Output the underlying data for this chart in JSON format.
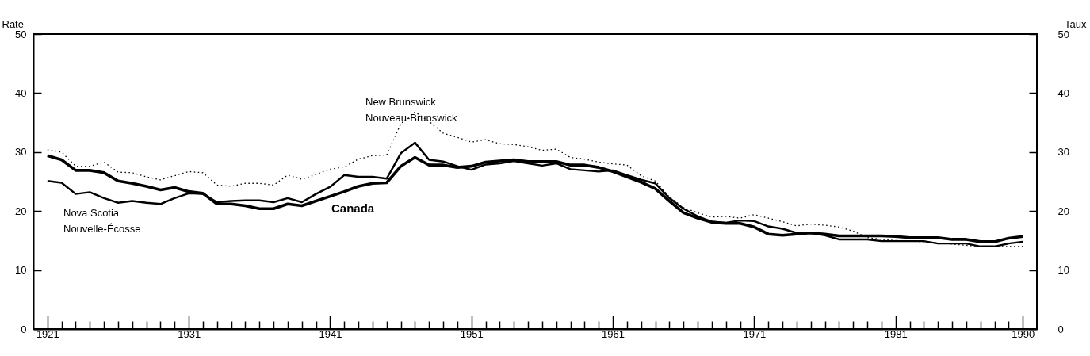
{
  "chart_data": {
    "type": "line",
    "ylabel": "Rate",
    "y2label": "Taux",
    "x": [
      1921,
      1922,
      1923,
      1924,
      1925,
      1926,
      1927,
      1928,
      1929,
      1930,
      1931,
      1932,
      1933,
      1934,
      1935,
      1936,
      1937,
      1938,
      1939,
      1940,
      1941,
      1942,
      1943,
      1944,
      1945,
      1946,
      1947,
      1948,
      1949,
      1950,
      1951,
      1952,
      1953,
      1954,
      1955,
      1956,
      1957,
      1958,
      1959,
      1960,
      1961,
      1962,
      1963,
      1964,
      1965,
      1966,
      1967,
      1968,
      1969,
      1970,
      1971,
      1972,
      1973,
      1974,
      1975,
      1976,
      1977,
      1978,
      1979,
      1980,
      1981,
      1982,
      1983,
      1984,
      1985,
      1986,
      1987,
      1988,
      1989,
      1990
    ],
    "series": [
      {
        "name": "Canada",
        "color": "#000000",
        "line_style": "solid",
        "values": [
          29.4,
          28.7,
          26.9,
          26.9,
          26.5,
          25.1,
          24.7,
          24.2,
          23.6,
          24.0,
          23.3,
          23.0,
          21.2,
          21.2,
          20.9,
          20.4,
          20.4,
          21.2,
          20.9,
          21.7,
          22.5,
          23.3,
          24.2,
          24.7,
          24.8,
          27.6,
          29.1,
          27.8,
          27.8,
          27.4,
          27.6,
          28.3,
          28.5,
          28.7,
          28.4,
          28.4,
          28.4,
          27.8,
          27.8,
          27.4,
          26.7,
          25.8,
          24.9,
          23.8,
          21.7,
          19.7,
          18.8,
          18.1,
          17.9,
          17.9,
          17.3,
          16.1,
          15.9,
          16.1,
          16.3,
          16.1,
          15.8,
          15.8,
          15.8,
          15.8,
          15.7,
          15.5,
          15.5,
          15.5,
          15.2,
          15.2,
          14.8,
          14.8,
          15.4,
          15.7
        ]
      },
      {
        "name": "Nova Scotia\nNouvelle-Écosse",
        "color": "#000000",
        "line_style": "solid",
        "values": [
          25.1,
          24.8,
          22.9,
          23.2,
          22.2,
          21.4,
          21.7,
          21.4,
          21.2,
          22.2,
          23.0,
          22.9,
          21.5,
          21.7,
          21.8,
          21.8,
          21.5,
          22.2,
          21.5,
          22.9,
          24.1,
          26.1,
          25.8,
          25.8,
          25.5,
          29.8,
          31.6,
          28.7,
          28.4,
          27.6,
          27.0,
          27.9,
          28.1,
          28.5,
          28.1,
          27.7,
          28.1,
          27.1,
          26.9,
          26.7,
          26.9,
          26.1,
          25.3,
          24.7,
          22.2,
          20.4,
          19.1,
          18.2,
          18.0,
          18.4,
          18.3,
          17.4,
          17.0,
          16.3,
          16.3,
          15.9,
          15.2,
          15.2,
          15.2,
          14.9,
          14.9,
          14.9,
          14.9,
          14.5,
          14.5,
          14.5,
          14.0,
          14.0,
          14.5,
          14.8
        ]
      },
      {
        "name": "New Brunswick\nNouveau-Brunswick",
        "color": "#000000",
        "line_style": "dotted",
        "values": [
          30.4,
          30.0,
          27.6,
          27.6,
          28.3,
          26.6,
          26.5,
          25.8,
          25.3,
          26.0,
          26.7,
          26.5,
          24.4,
          24.2,
          24.7,
          24.7,
          24.4,
          26.1,
          25.4,
          26.2,
          27.1,
          27.5,
          28.8,
          29.4,
          29.5,
          34.8,
          36.8,
          35.2,
          33.2,
          32.5,
          31.7,
          32.1,
          31.4,
          31.3,
          30.9,
          30.3,
          30.5,
          29.1,
          28.8,
          28.3,
          28.0,
          27.8,
          26.0,
          25.1,
          22.4,
          20.6,
          19.7,
          19.0,
          19.1,
          18.8,
          19.4,
          18.8,
          18.2,
          17.5,
          17.8,
          17.6,
          17.3,
          16.6,
          15.5,
          15.2,
          15.0,
          14.9,
          14.8,
          14.6,
          14.4,
          14.2,
          14.0,
          14.0,
          14.0,
          14.0
        ]
      }
    ],
    "xlim": [
      1920,
      1991
    ],
    "xticks": [
      1921,
      {
        "value": 1922,
        "label": null
      },
      {
        "value": 1923,
        "label": null
      },
      {
        "value": 1924,
        "label": null
      },
      {
        "value": 1925,
        "label": null
      },
      {
        "value": 1926,
        "label": null
      },
      {
        "value": 1927,
        "label": null
      },
      {
        "value": 1928,
        "label": null
      },
      {
        "value": 1929,
        "label": null
      },
      {
        "value": 1930,
        "label": null
      },
      1931,
      {
        "value": 1932,
        "label": null
      },
      {
        "value": 1933,
        "label": null
      },
      {
        "value": 1934,
        "label": null
      },
      {
        "value": 1935,
        "label": null
      },
      {
        "value": 1936,
        "label": null
      },
      {
        "value": 1937,
        "label": null
      },
      {
        "value": 1938,
        "label": null
      },
      {
        "value": 1939,
        "label": null
      },
      {
        "value": 1940,
        "label": null
      },
      1941,
      {
        "value": 1942,
        "label": null
      },
      {
        "value": 1943,
        "label": null
      },
      {
        "value": 1944,
        "label": null
      },
      {
        "value": 1945,
        "label": null
      },
      {
        "value": 1946,
        "label": null
      },
      {
        "value": 1947,
        "label": null
      },
      {
        "value": 1948,
        "label": null
      },
      {
        "value": 1949,
        "label": null
      },
      {
        "value": 1950,
        "label": null
      },
      1951,
      {
        "value": 1952,
        "label": null
      },
      {
        "value": 1953,
        "label": null
      },
      {
        "value": 1954,
        "label": null
      },
      {
        "value": 1955,
        "label": null
      },
      {
        "value": 1956,
        "label": null
      },
      {
        "value": 1957,
        "label": null
      },
      {
        "value": 1958,
        "label": null
      },
      {
        "value": 1959,
        "label": null
      },
      {
        "value": 1960,
        "label": null
      },
      1961,
      {
        "value": 1962,
        "label": null
      },
      {
        "value": 1963,
        "label": null
      },
      {
        "value": 1964,
        "label": null
      },
      {
        "value": 1965,
        "label": null
      },
      {
        "value": 1966,
        "label": null
      },
      {
        "value": 1967,
        "label": null
      },
      {
        "value": 1968,
        "label": null
      },
      {
        "value": 1969,
        "label": null
      },
      {
        "value": 1970,
        "label": null
      },
      1971,
      {
        "value": 1972,
        "label": null
      },
      {
        "value": 1973,
        "label": null
      },
      {
        "value": 1974,
        "label": null
      },
      {
        "value": 1975,
        "label": null
      },
      {
        "value": 1976,
        "label": null
      },
      {
        "value": 1977,
        "label": null
      },
      {
        "value": 1978,
        "label": null
      },
      {
        "value": 1979,
        "label": null
      },
      {
        "value": 1980,
        "label": null
      },
      1981,
      {
        "value": 1982,
        "label": null
      },
      {
        "value": 1983,
        "label": null
      },
      {
        "value": 1984,
        "label": null
      },
      {
        "value": 1985,
        "label": null
      },
      {
        "value": 1986,
        "label": null
      },
      {
        "value": 1987,
        "label": null
      },
      {
        "value": 1988,
        "label": null
      },
      {
        "value": 1989,
        "label": null
      },
      1990
    ],
    "ylim": [
      0,
      50
    ],
    "yticks": [
      0,
      10,
      20,
      30,
      40,
      50
    ],
    "y2lim": [
      0,
      50
    ],
    "y2ticks": [
      0,
      10,
      20,
      30,
      40,
      50
    ],
    "grid": false,
    "legend": false
  }
}
